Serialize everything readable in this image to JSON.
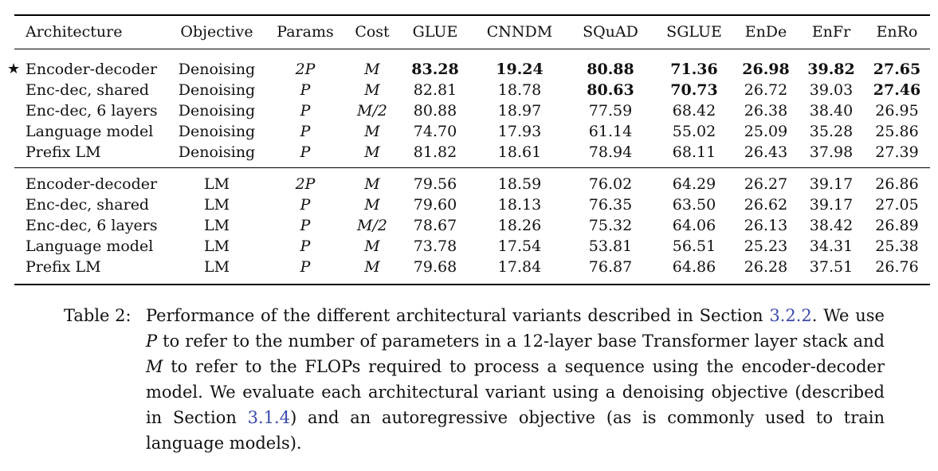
{
  "table": {
    "headers": [
      "Architecture",
      "Objective",
      "Params",
      "Cost",
      "GLUE",
      "CNNDM",
      "SQuAD",
      "SGLUE",
      "EnDe",
      "EnFr",
      "EnRo"
    ],
    "star_symbol": "★",
    "group1": [
      {
        "architecture": "Encoder-decoder",
        "objective": "Denoising",
        "params": "2P",
        "cost": "M",
        "glue": "83.28",
        "cnndm": "19.24",
        "squad": "80.88",
        "sglue": "71.36",
        "ende": "26.98",
        "enfr": "39.82",
        "enro": "27.65",
        "starred": true,
        "bold": [
          "glue",
          "cnndm",
          "squad",
          "sglue",
          "ende",
          "enfr",
          "enro"
        ]
      },
      {
        "architecture": "Enc-dec, shared",
        "objective": "Denoising",
        "params": "P",
        "cost": "M",
        "glue": "82.81",
        "cnndm": "18.78",
        "squad": "80.63",
        "sglue": "70.73",
        "ende": "26.72",
        "enfr": "39.03",
        "enro": "27.46",
        "bold": [
          "squad",
          "sglue",
          "enro"
        ]
      },
      {
        "architecture": "Enc-dec, 6 layers",
        "objective": "Denoising",
        "params": "P",
        "cost": "M/2",
        "glue": "80.88",
        "cnndm": "18.97",
        "squad": "77.59",
        "sglue": "68.42",
        "ende": "26.38",
        "enfr": "38.40",
        "enro": "26.95",
        "bold": []
      },
      {
        "architecture": "Language model",
        "objective": "Denoising",
        "params": "P",
        "cost": "M",
        "glue": "74.70",
        "cnndm": "17.93",
        "squad": "61.14",
        "sglue": "55.02",
        "ende": "25.09",
        "enfr": "35.28",
        "enro": "25.86",
        "bold": []
      },
      {
        "architecture": "Prefix LM",
        "objective": "Denoising",
        "params": "P",
        "cost": "M",
        "glue": "81.82",
        "cnndm": "18.61",
        "squad": "78.94",
        "sglue": "68.11",
        "ende": "26.43",
        "enfr": "37.98",
        "enro": "27.39",
        "bold": []
      }
    ],
    "group2": [
      {
        "architecture": "Encoder-decoder",
        "objective": "LM",
        "params": "2P",
        "cost": "M",
        "glue": "79.56",
        "cnndm": "18.59",
        "squad": "76.02",
        "sglue": "64.29",
        "ende": "26.27",
        "enfr": "39.17",
        "enro": "26.86",
        "bold": []
      },
      {
        "architecture": "Enc-dec, shared",
        "objective": "LM",
        "params": "P",
        "cost": "M",
        "glue": "79.60",
        "cnndm": "18.13",
        "squad": "76.35",
        "sglue": "63.50",
        "ende": "26.62",
        "enfr": "39.17",
        "enro": "27.05",
        "bold": []
      },
      {
        "architecture": "Enc-dec, 6 layers",
        "objective": "LM",
        "params": "P",
        "cost": "M/2",
        "glue": "78.67",
        "cnndm": "18.26",
        "squad": "75.32",
        "sglue": "64.06",
        "ende": "26.13",
        "enfr": "38.42",
        "enro": "26.89",
        "bold": []
      },
      {
        "architecture": "Language model",
        "objective": "LM",
        "params": "P",
        "cost": "M",
        "glue": "73.78",
        "cnndm": "17.54",
        "squad": "53.81",
        "sglue": "56.51",
        "ende": "25.23",
        "enfr": "34.31",
        "enro": "25.38",
        "bold": []
      },
      {
        "architecture": "Prefix LM",
        "objective": "LM",
        "params": "P",
        "cost": "M",
        "glue": "79.68",
        "cnndm": "17.84",
        "squad": "76.87",
        "sglue": "64.86",
        "ende": "26.28",
        "enfr": "37.51",
        "enro": "26.76",
        "bold": []
      }
    ]
  },
  "caption": {
    "label": "Table 2:",
    "t1": "Performance of the different architectural variants described in Section ",
    "ref1": "3.2.2",
    "t2": ". We use ",
    "var_p": "P",
    "t3": " to refer to the number of parameters in a 12-layer base Transformer layer stack and ",
    "var_m": "M",
    "t4": " to refer to the FLOPs required to process a sequence using the encoder-decoder model. We evaluate each architectural variant using a denoising objective (described in Section ",
    "ref2": "3.1.4",
    "t5": ") and an autoregressive objective (as is commonly used to train language models)."
  }
}
